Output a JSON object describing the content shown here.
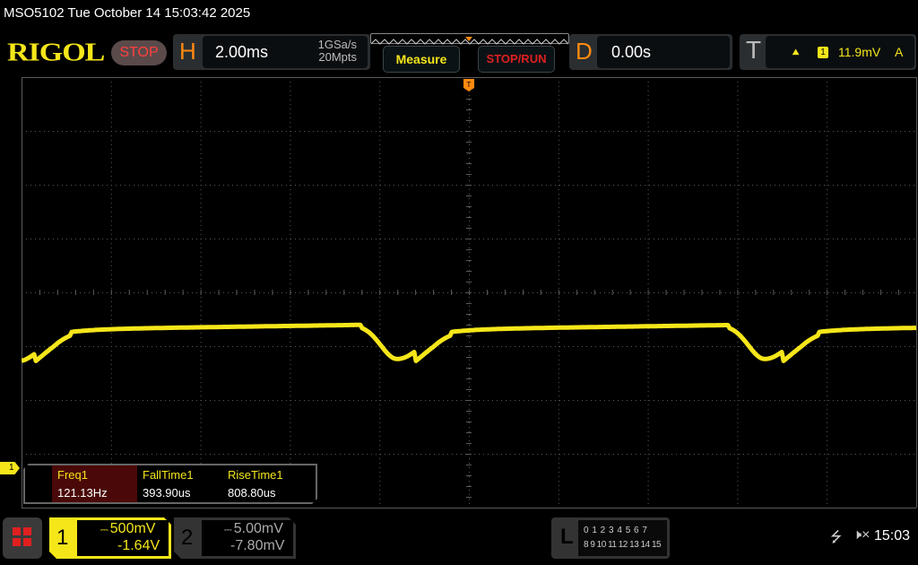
{
  "title_bar": "MSO5102  Tue October 14 15:03:42 2025",
  "logo": "RIGOL",
  "run_state": "STOP",
  "horizontal": {
    "letter": "H",
    "timebase": "2.00ms",
    "sample_rate": "1GSa/s",
    "memory_depth": "20Mpts"
  },
  "buttons": {
    "measure": "Measure",
    "stop_run": "STOP/RUN"
  },
  "delay": {
    "letter": "D",
    "value": "0.00s"
  },
  "trigger": {
    "letter": "T",
    "slope_icon": "rising-edge-icon",
    "slope_glyph": "⯅",
    "source": "1",
    "level": "11.9mV",
    "mode": "A"
  },
  "channel_marker": "1",
  "measurements": [
    {
      "label": "Freq1",
      "value": "121.13Hz"
    },
    {
      "label": "FallTime1",
      "value": "393.90us"
    },
    {
      "label": "RiseTime1",
      "value": "808.80us"
    }
  ],
  "channels": [
    {
      "number": "1",
      "coupling": "⎓",
      "scale": "500mV",
      "offset": "-1.64V",
      "color": "#f5e61a"
    },
    {
      "number": "2",
      "coupling": "⎓",
      "scale": "5.00mV",
      "offset": "-7.80mV",
      "color": "#aaaaaa"
    }
  ],
  "logic": {
    "letter": "L",
    "row1": "0 1 2 3  4 5 6 7",
    "row2": "8 9 10 11 12 13 14 15"
  },
  "status": {
    "usb_icon": "usb-icon",
    "usb_glyph": "⭍",
    "mute_icon": "speaker-muted-icon",
    "mute_glyph": "🕨×",
    "time": "15:03"
  },
  "colors": {
    "trace": "#f5e61a",
    "accent": "#ff8a10",
    "grid": "#5a5a5a"
  }
}
